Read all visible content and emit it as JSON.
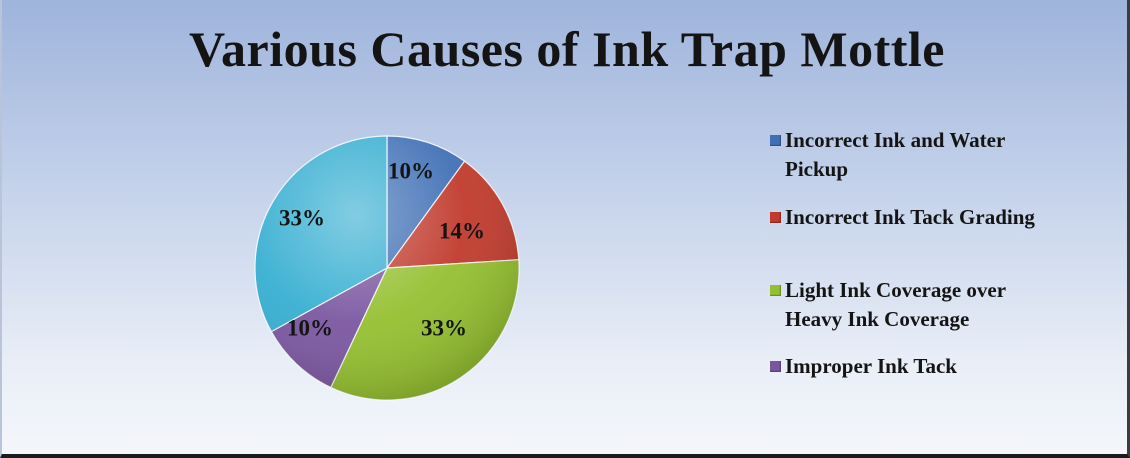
{
  "chart_data": {
    "type": "pie",
    "title": "Various Causes of Ink Trap Mottle",
    "categories": [
      "Incorrect  Ink  and Water Pickup",
      "Incorrect Ink Tack Grading",
      "Light Ink Coverage over Heavy Ink Coverage",
      "Improper Ink Tack",
      ""
    ],
    "values": [
      10,
      14,
      33,
      10,
      33
    ],
    "value_labels": [
      "10%",
      "14%",
      "33%",
      "10%",
      "33%"
    ],
    "colors": [
      "#3f6fb5",
      "#c0392b",
      "#94bf2e",
      "#7a55a0",
      "#35aed1"
    ],
    "legend_position": "right"
  },
  "legend": {
    "items": [
      {
        "label_line1": "Incorrect  Ink  and Water",
        "label_line2": "Pickup",
        "color": "#3f6fb5"
      },
      {
        "label_line1": "Incorrect Ink Tack Grading",
        "label_line2": "",
        "color": "#c0392b"
      },
      {
        "label_line1": "Light Ink Coverage over",
        "label_line2": "Heavy Ink Coverage",
        "color": "#94bf2e"
      },
      {
        "label_line1": "Improper Ink Tack",
        "label_line2": "",
        "color": "#7a55a0"
      }
    ]
  }
}
